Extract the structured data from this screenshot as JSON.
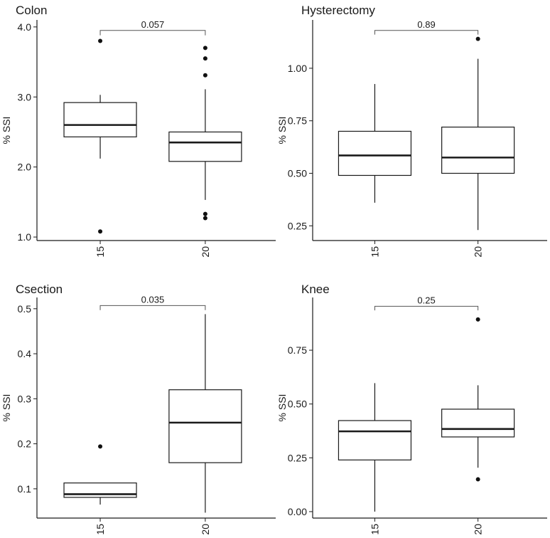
{
  "chart_data": [
    {
      "type": "boxplot",
      "title": "Colon",
      "ylabel": "% SSI",
      "xlabel": "",
      "categories": [
        "15",
        "20"
      ],
      "ylim": [
        0.95,
        4.1
      ],
      "yticks": [
        1.0,
        2.0,
        3.0,
        4.0
      ],
      "ytick_labels": [
        "1.0",
        "2.0",
        "3.0",
        "4.0"
      ],
      "boxes": [
        {
          "category": "15",
          "whisker_low": 2.12,
          "q1": 2.43,
          "median": 2.6,
          "q3": 2.92,
          "whisker_high": 3.03,
          "outliers": [
            3.8,
            1.08
          ]
        },
        {
          "category": "20",
          "whisker_low": 1.53,
          "q1": 2.08,
          "median": 2.35,
          "q3": 2.5,
          "whisker_high": 3.11,
          "outliers": [
            3.7,
            3.55,
            3.31,
            1.33,
            1.27
          ]
        }
      ],
      "comparison": {
        "label": "0.057",
        "y": 3.95,
        "tick_end": 3.88
      }
    },
    {
      "type": "boxplot",
      "title": "Hysterectomy",
      "ylabel": "% SSI",
      "xlabel": "",
      "categories": [
        "15",
        "20"
      ],
      "ylim": [
        0.18,
        1.23
      ],
      "yticks": [
        0.25,
        0.5,
        0.75,
        1.0
      ],
      "ytick_labels": [
        "0.25",
        "0.50",
        "0.75",
        "1.00"
      ],
      "boxes": [
        {
          "category": "15",
          "whisker_low": 0.36,
          "q1": 0.49,
          "median": 0.585,
          "q3": 0.7,
          "whisker_high": 0.925,
          "outliers": []
        },
        {
          "category": "20",
          "whisker_low": 0.23,
          "q1": 0.5,
          "median": 0.575,
          "q3": 0.72,
          "whisker_high": 1.045,
          "outliers": [
            1.14
          ]
        }
      ],
      "comparison": {
        "label": "0.89",
        "y": 1.18,
        "tick_end": 1.16
      }
    },
    {
      "type": "boxplot",
      "title": "Csection",
      "ylabel": "% SSI",
      "xlabel": "",
      "categories": [
        "15",
        "20"
      ],
      "ylim": [
        0.035,
        0.525
      ],
      "yticks": [
        0.1,
        0.2,
        0.3,
        0.4,
        0.5
      ],
      "ytick_labels": [
        "0.1",
        "0.2",
        "0.3",
        "0.4",
        "0.5"
      ],
      "boxes": [
        {
          "category": "15",
          "whisker_low": 0.065,
          "q1": 0.081,
          "median": 0.088,
          "q3": 0.113,
          "whisker_high": 0.113,
          "outliers": [
            0.194
          ]
        },
        {
          "category": "20",
          "whisker_low": 0.047,
          "q1": 0.158,
          "median": 0.247,
          "q3": 0.32,
          "whisker_high": 0.488,
          "outliers": []
        }
      ],
      "comparison": {
        "label": "0.035",
        "y": 0.507,
        "tick_end": 0.497
      }
    },
    {
      "type": "boxplot",
      "title": "Knee",
      "ylabel": "% SSI",
      "xlabel": "",
      "categories": [
        "15",
        "20"
      ],
      "ylim": [
        -0.03,
        0.995
      ],
      "yticks": [
        0.0,
        0.25,
        0.5,
        0.75
      ],
      "ytick_labels": [
        "0.00",
        "0.25",
        "0.50",
        "0.75"
      ],
      "boxes": [
        {
          "category": "15",
          "whisker_low": 0.0,
          "q1": 0.24,
          "median": 0.373,
          "q3": 0.423,
          "whisker_high": 0.597,
          "outliers": []
        },
        {
          "category": "20",
          "whisker_low": 0.204,
          "q1": 0.347,
          "median": 0.384,
          "q3": 0.476,
          "whisker_high": 0.587,
          "outliers": [
            0.893,
            0.15
          ]
        }
      ],
      "comparison": {
        "label": "0.25",
        "y": 0.954,
        "tick_end": 0.935
      }
    }
  ]
}
